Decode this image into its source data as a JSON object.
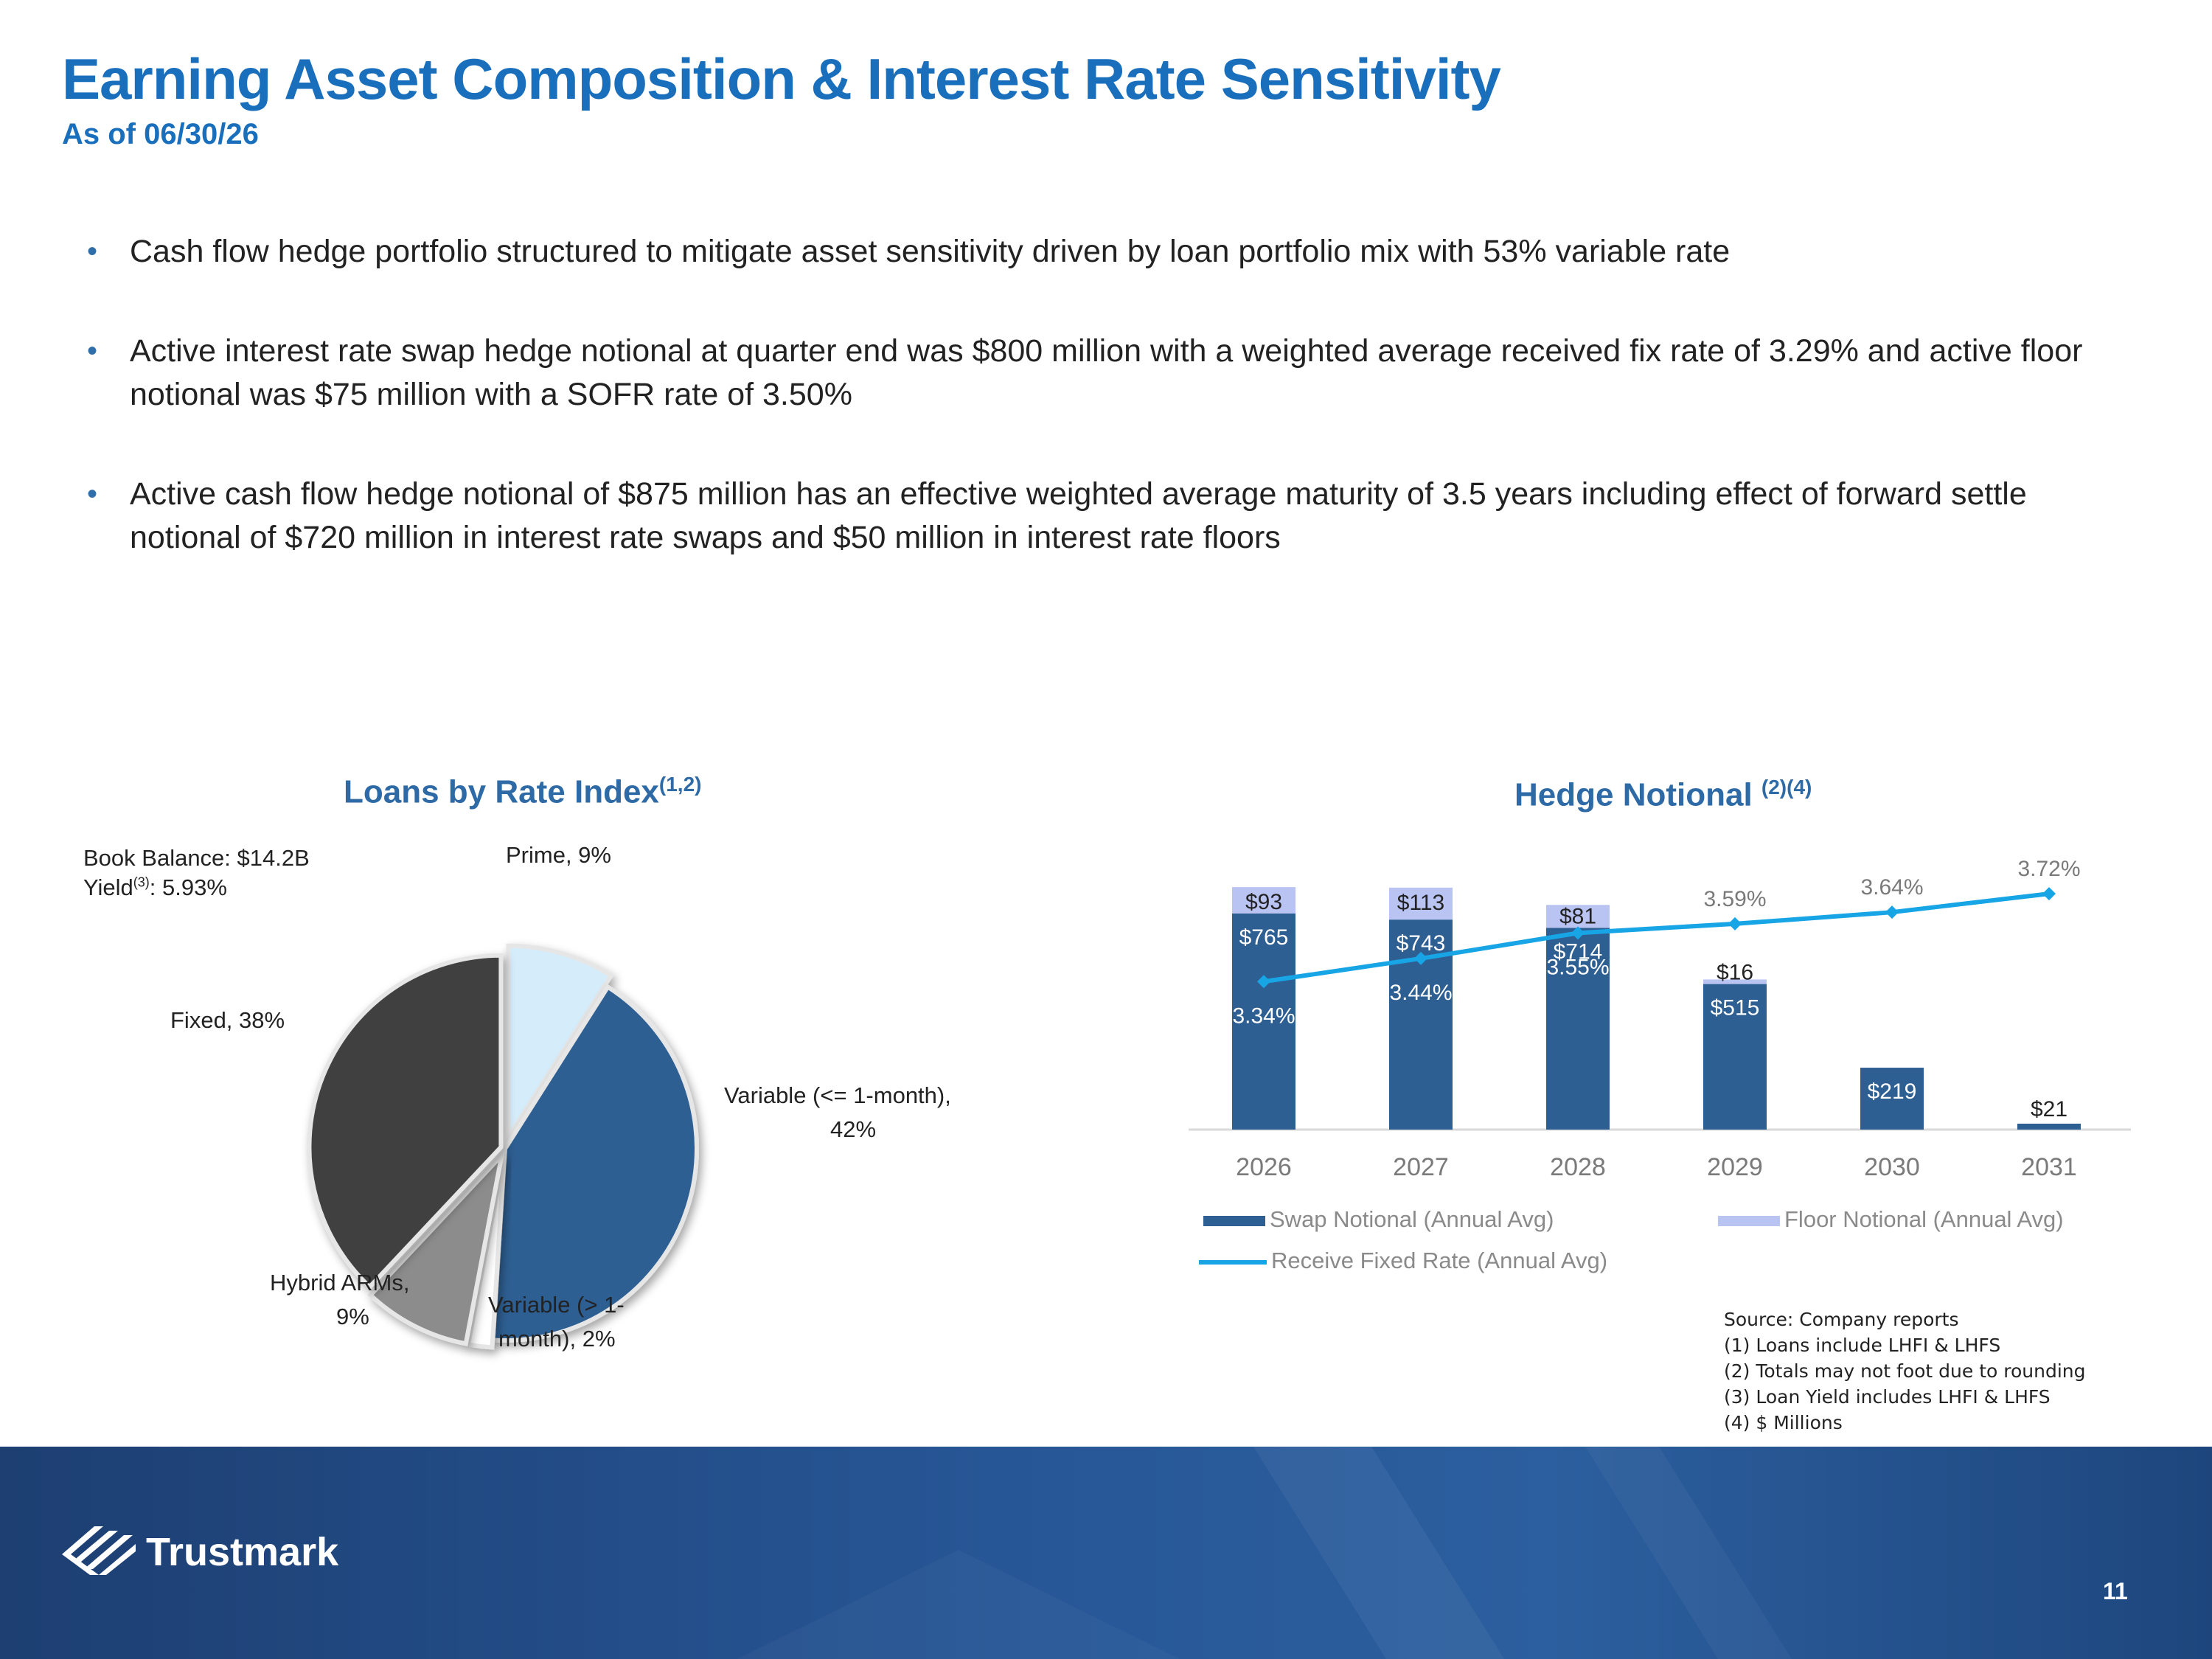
{
  "header": {
    "title": "Earning Asset Composition & Interest Rate Sensitivity",
    "subtitle": "As of 06/30/26"
  },
  "bullets": [
    "Cash flow hedge portfolio structured to mitigate asset sensitivity driven by loan portfolio mix with 53% variable rate",
    "Active interest rate swap hedge notional at quarter end was $800 million with a weighted average received fix rate of 3.29% and active floor notional was $75 million with a SOFR rate of 3.50%",
    "Active cash flow hedge notional of $875 million has an effective weighted average maturity of 3.5 years including effect of forward settle notional of $720 million in interest rate swaps and $50 million in interest rate floors"
  ],
  "pie": {
    "title": "Loans by Rate Index",
    "title_sup": "(1,2)",
    "book_line": "Book Balance: $14.2B",
    "yield_prefix": "Yield",
    "yield_sup": "(3)",
    "yield_value": ": 5.93%",
    "labels": {
      "prime": "Prime, 9%",
      "fixed": "Fixed, 38%",
      "variable1_line1": "Variable (<= 1-month),",
      "variable1_line2": "42%",
      "hybrid_line1": "Hybrid ARMs,",
      "hybrid_line2": "9%",
      "variable2_line1": "Variable (> 1-",
      "variable2_line2": "month), 2%"
    }
  },
  "bar": {
    "title": "Hedge Notional ",
    "title_sup": "(2)(4)",
    "legend": {
      "swap": "Swap Notional (Annual Avg)",
      "floor": "Floor Notional (Annual Avg)",
      "rate": "Receive Fixed Rate (Annual Avg)"
    }
  },
  "chart_data": [
    {
      "type": "pie",
      "title": "Loans by Rate Index",
      "slices": [
        {
          "label": "Prime",
          "value": 9,
          "color": "#d5ecfb"
        },
        {
          "label": "Variable (<= 1-month)",
          "value": 42,
          "color": "#2e5f92"
        },
        {
          "label": "Variable (> 1-month)",
          "value": 2,
          "color": "#ffffff"
        },
        {
          "label": "Hybrid ARMs",
          "value": 9,
          "color": "#8c8c8c"
        },
        {
          "label": "Fixed",
          "value": 38,
          "color": "#414141"
        }
      ]
    },
    {
      "type": "bar",
      "title": "Hedge Notional",
      "categories": [
        "2026",
        "2027",
        "2028",
        "2029",
        "2030",
        "2031"
      ],
      "series": [
        {
          "name": "Swap Notional (Annual Avg)",
          "values": [
            765,
            743,
            714,
            515,
            219,
            21
          ],
          "labels": [
            "$765",
            "$743",
            "$714",
            "$515",
            "$219",
            "$21"
          ],
          "color": "#2e5f92"
        },
        {
          "name": "Floor Notional (Annual Avg)",
          "values": [
            93,
            113,
            81,
            16,
            0,
            0
          ],
          "labels": [
            "$93",
            "$113",
            "$81",
            "$16",
            "",
            ""
          ],
          "color": "#b9c4f3"
        },
        {
          "name": "Receive Fixed Rate (Annual Avg)",
          "values": [
            3.34,
            3.44,
            3.55,
            3.59,
            3.64,
            3.72
          ],
          "labels": [
            "3.34%",
            "3.44%",
            "3.55%",
            "3.59%",
            "3.64%",
            "3.72%"
          ],
          "color": "#17a5e6"
        }
      ],
      "ylim": [
        0,
        900
      ],
      "y2lim": [
        2.7,
        3.8
      ],
      "legend_position": "bottom",
      "grid": false
    }
  ],
  "source_notes": [
    "Source: Company reports",
    "(1) Loans include LHFI & LHFS",
    "(2) Totals may not foot due to rounding",
    "(3) Loan Yield includes LHFI & LHFS",
    "(4) $ Millions"
  ],
  "footer": {
    "brand": "Trustmark",
    "page_number": "11"
  }
}
